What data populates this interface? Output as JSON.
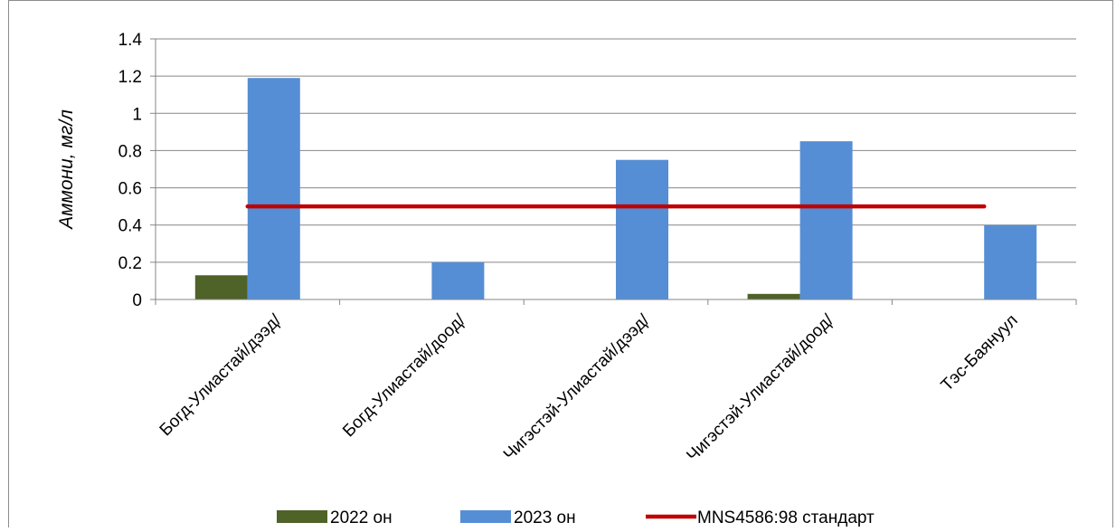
{
  "chart_data": {
    "type": "bar",
    "title": "",
    "xlabel": "",
    "ylabel": "Аммони, мг/л",
    "ylim": [
      0,
      1.4
    ],
    "y_ticks": [
      0,
      0.2,
      0.4,
      0.6,
      0.8,
      1,
      1.2,
      1.4
    ],
    "y_tick_labels": [
      "0",
      "0.2",
      "0.4",
      "0.6",
      "0.8",
      "1",
      "1.2",
      "1.4"
    ],
    "grid": true,
    "legend_position": "bottom",
    "categories": [
      "Богд-Улиастай/дээд/",
      "Богд-Улиастай/доод/",
      "Чигэстэй-Улиастай/дээд/",
      "Чигэстэй-Улиастай/доод/",
      "Тэс-Баянуул"
    ],
    "series": [
      {
        "name": "2022 он",
        "kind": "bar",
        "color": "#4f6228",
        "values": [
          0.13,
          0,
          0,
          0.03,
          0
        ]
      },
      {
        "name": "2023 он",
        "kind": "bar",
        "color": "#558ed5",
        "values": [
          1.19,
          0.2,
          0.75,
          0.85,
          0.4
        ]
      },
      {
        "name": "MNS4586:98 стандарт",
        "kind": "line",
        "color": "#c00000",
        "values": [
          0.5,
          0.5,
          0.5,
          0.5,
          0.5
        ]
      }
    ]
  }
}
